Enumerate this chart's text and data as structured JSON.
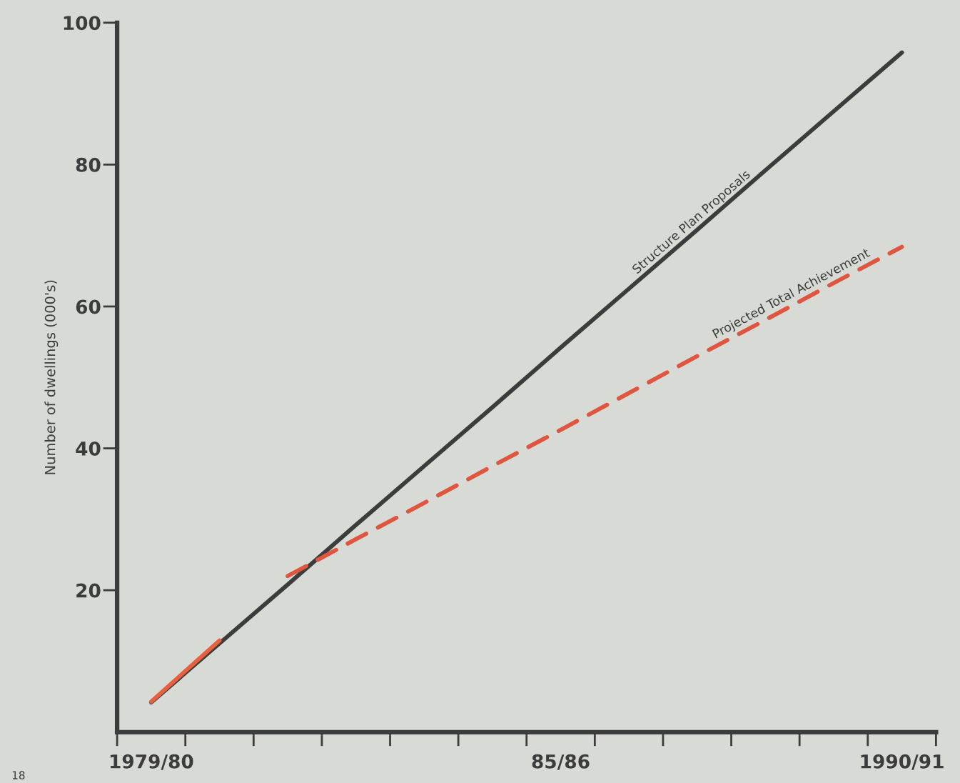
{
  "chart_data": {
    "type": "line",
    "ylabel": "Number of dwellings (000's)",
    "categories": [
      "1979/80",
      null,
      null,
      null,
      null,
      null,
      "85/86",
      null,
      null,
      null,
      null,
      "1990/91"
    ],
    "ylim": [
      0,
      100
    ],
    "yticks": [
      20,
      40,
      60,
      80,
      100
    ],
    "grid": false,
    "legend": false,
    "series": [
      {
        "name": "Structure Plan Proposals",
        "color": "#3c3c3c",
        "values": [
          4.2,
          12.5,
          20.8,
          29.2,
          37.5,
          45.8,
          54.2,
          62.5,
          70.8,
          79.2,
          87.5,
          95.8
        ],
        "line_style": "solid"
      },
      {
        "color": "#e8603f",
        "values": [
          4.3,
          12.9,
          null,
          null,
          null,
          null,
          null,
          null,
          null,
          null,
          null,
          null
        ],
        "line_style": "solid"
      },
      {
        "name": "Projected Total Achievement",
        "color": "#e0553f",
        "values": [
          null,
          null,
          22,
          27.2,
          32.3,
          37.5,
          42.6,
          47.8,
          53,
          58.1,
          63.3,
          68.4
        ],
        "line_style": "dashed"
      }
    ],
    "annotations": [
      "18"
    ]
  }
}
